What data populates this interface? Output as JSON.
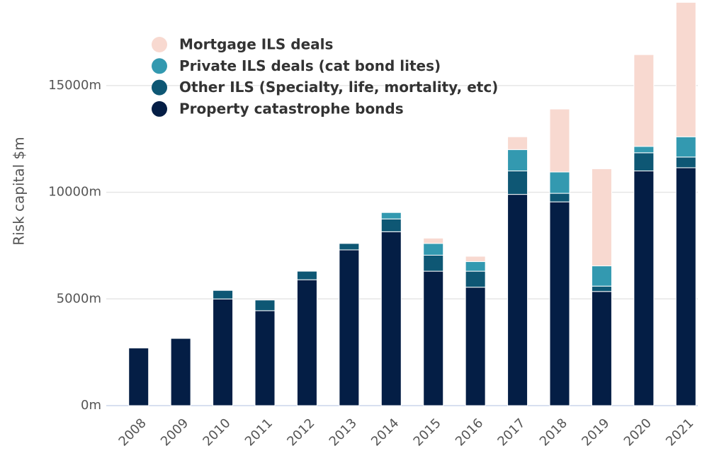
{
  "chart_data": {
    "type": "stacked_bar",
    "y_label": "Risk capital $m",
    "categories": [
      "2008",
      "2009",
      "2010",
      "2011",
      "2012",
      "2013",
      "2014",
      "2015",
      "2016",
      "2017",
      "2018",
      "2019",
      "2020",
      "2021"
    ],
    "series": [
      {
        "name": "Property catastrophe bonds",
        "color": "#041e45",
        "values": [
          2700,
          3150,
          5000,
          4450,
          5900,
          7300,
          8150,
          6300,
          5550,
          9900,
          9550,
          5350,
          11000,
          11150
        ]
      },
      {
        "name": "Other ILS (Specialty, life, mortality, etc)",
        "color": "#0e5774",
        "values": [
          null,
          null,
          400,
          500,
          400,
          300,
          600,
          750,
          750,
          1100,
          400,
          250,
          850,
          500
        ]
      },
      {
        "name": "Private ILS deals (cat bond lites)",
        "color": "#3399b0",
        "values": [
          null,
          null,
          null,
          null,
          null,
          null,
          300,
          550,
          450,
          1000,
          1000,
          950,
          300,
          950
        ]
      },
      {
        "name": "Mortgage ILS deals",
        "color": "#f8d9d0",
        "values": [
          null,
          null,
          null,
          null,
          null,
          null,
          null,
          250,
          250,
          600,
          2950,
          4550,
          4300,
          6300
        ]
      }
    ],
    "ylim": [
      0,
      19000
    ],
    "yticks": [
      {
        "value": 0,
        "label": "0m"
      },
      {
        "value": 5000,
        "label": "5000m"
      },
      {
        "value": 10000,
        "label": "10000m"
      },
      {
        "value": 15000,
        "label": "15000m"
      }
    ],
    "grid": true,
    "legend": "top-left"
  }
}
